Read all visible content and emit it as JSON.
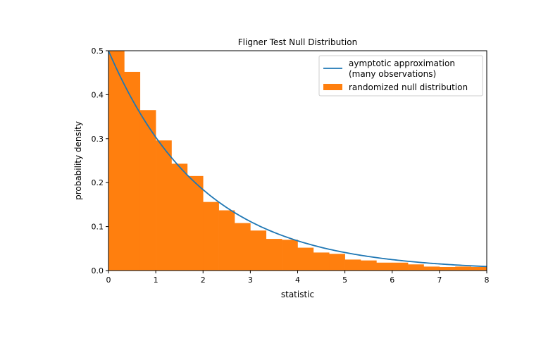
{
  "chart_data": {
    "type": "bar",
    "title": "Fligner Test Null Distribution",
    "xlabel": "statistic",
    "ylabel": "probability density",
    "xlim": [
      0,
      8
    ],
    "ylim": [
      0,
      0.5
    ],
    "xticks": [
      "0",
      "1",
      "2",
      "3",
      "4",
      "5",
      "6",
      "7",
      "8"
    ],
    "yticks": [
      "0.0",
      "0.1",
      "0.2",
      "0.3",
      "0.4",
      "0.5"
    ],
    "grid": false,
    "legend_position": "upper-right",
    "histogram": {
      "name": "randomized null distribution",
      "color": "#ff7f0e",
      "bin_edges_start": 0,
      "bin_width": 0.3333,
      "values": [
        0.5,
        0.452,
        0.365,
        0.296,
        0.243,
        0.215,
        0.156,
        0.137,
        0.108,
        0.091,
        0.072,
        0.07,
        0.052,
        0.041,
        0.038,
        0.025,
        0.023,
        0.018,
        0.018,
        0.014,
        0.009,
        0.008,
        0.009,
        0.008
      ]
    },
    "line": {
      "name": "asymptotic approximation\n(many observations)",
      "name_lines": [
        "aymptotic approximation",
        "(many observations)"
      ],
      "color": "#1f77b4",
      "function": "0.5*exp(-x/2)",
      "x": [
        0,
        0.5,
        1,
        1.5,
        2,
        2.5,
        3,
        3.5,
        4,
        4.5,
        5,
        5.5,
        6,
        6.5,
        7,
        7.5,
        8
      ],
      "y": [
        0.5,
        0.389,
        0.303,
        0.236,
        0.184,
        0.143,
        0.112,
        0.087,
        0.068,
        0.053,
        0.041,
        0.032,
        0.025,
        0.019,
        0.015,
        0.012,
        0.009
      ]
    }
  }
}
